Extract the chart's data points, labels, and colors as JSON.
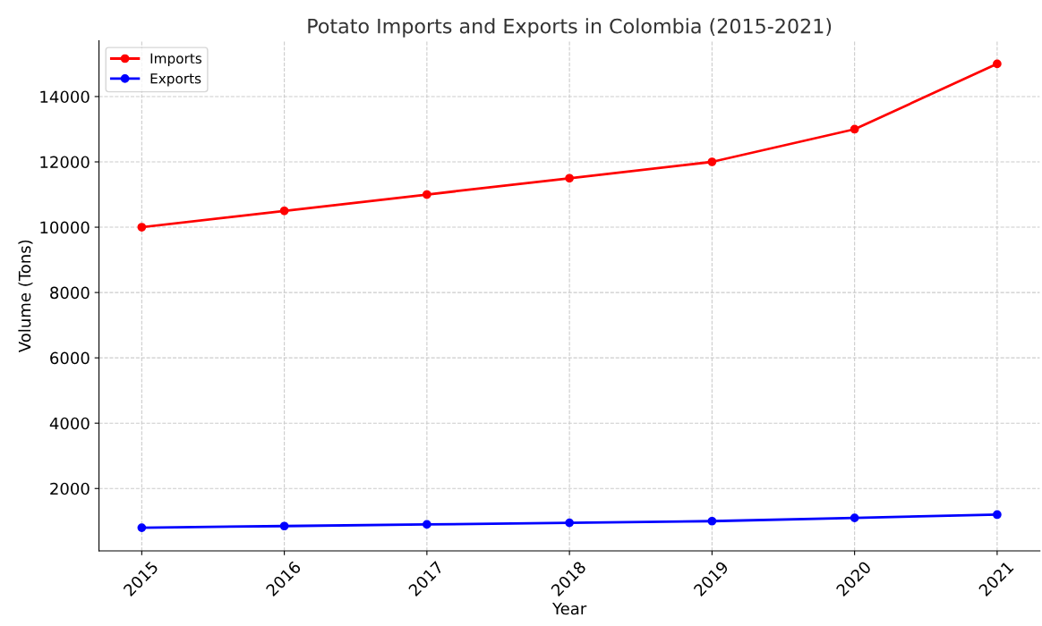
{
  "chart_data": {
    "type": "line",
    "title": "Potato Imports and Exports in Colombia (2015-2021)",
    "xlabel": "Year",
    "ylabel": "Volume (Tons)",
    "x": [
      2015,
      2016,
      2017,
      2018,
      2019,
      2020,
      2021
    ],
    "series": [
      {
        "name": "Imports",
        "color": "#ff0000",
        "values": [
          10000,
          10500,
          11000,
          11500,
          12000,
          13000,
          15000
        ]
      },
      {
        "name": "Exports",
        "color": "#0000ff",
        "values": [
          800,
          850,
          900,
          950,
          1000,
          1100,
          1200
        ]
      }
    ],
    "xlim": [
      2014.7,
      2021.3
    ],
    "xticks": [
      2015,
      2016,
      2017,
      2018,
      2019,
      2020,
      2021
    ],
    "ylim": [
      90,
      15710
    ],
    "yticks": [
      2000,
      4000,
      6000,
      8000,
      10000,
      12000,
      14000
    ],
    "grid": true,
    "legend": "top left",
    "marker": "circle",
    "line_style": "solid"
  }
}
